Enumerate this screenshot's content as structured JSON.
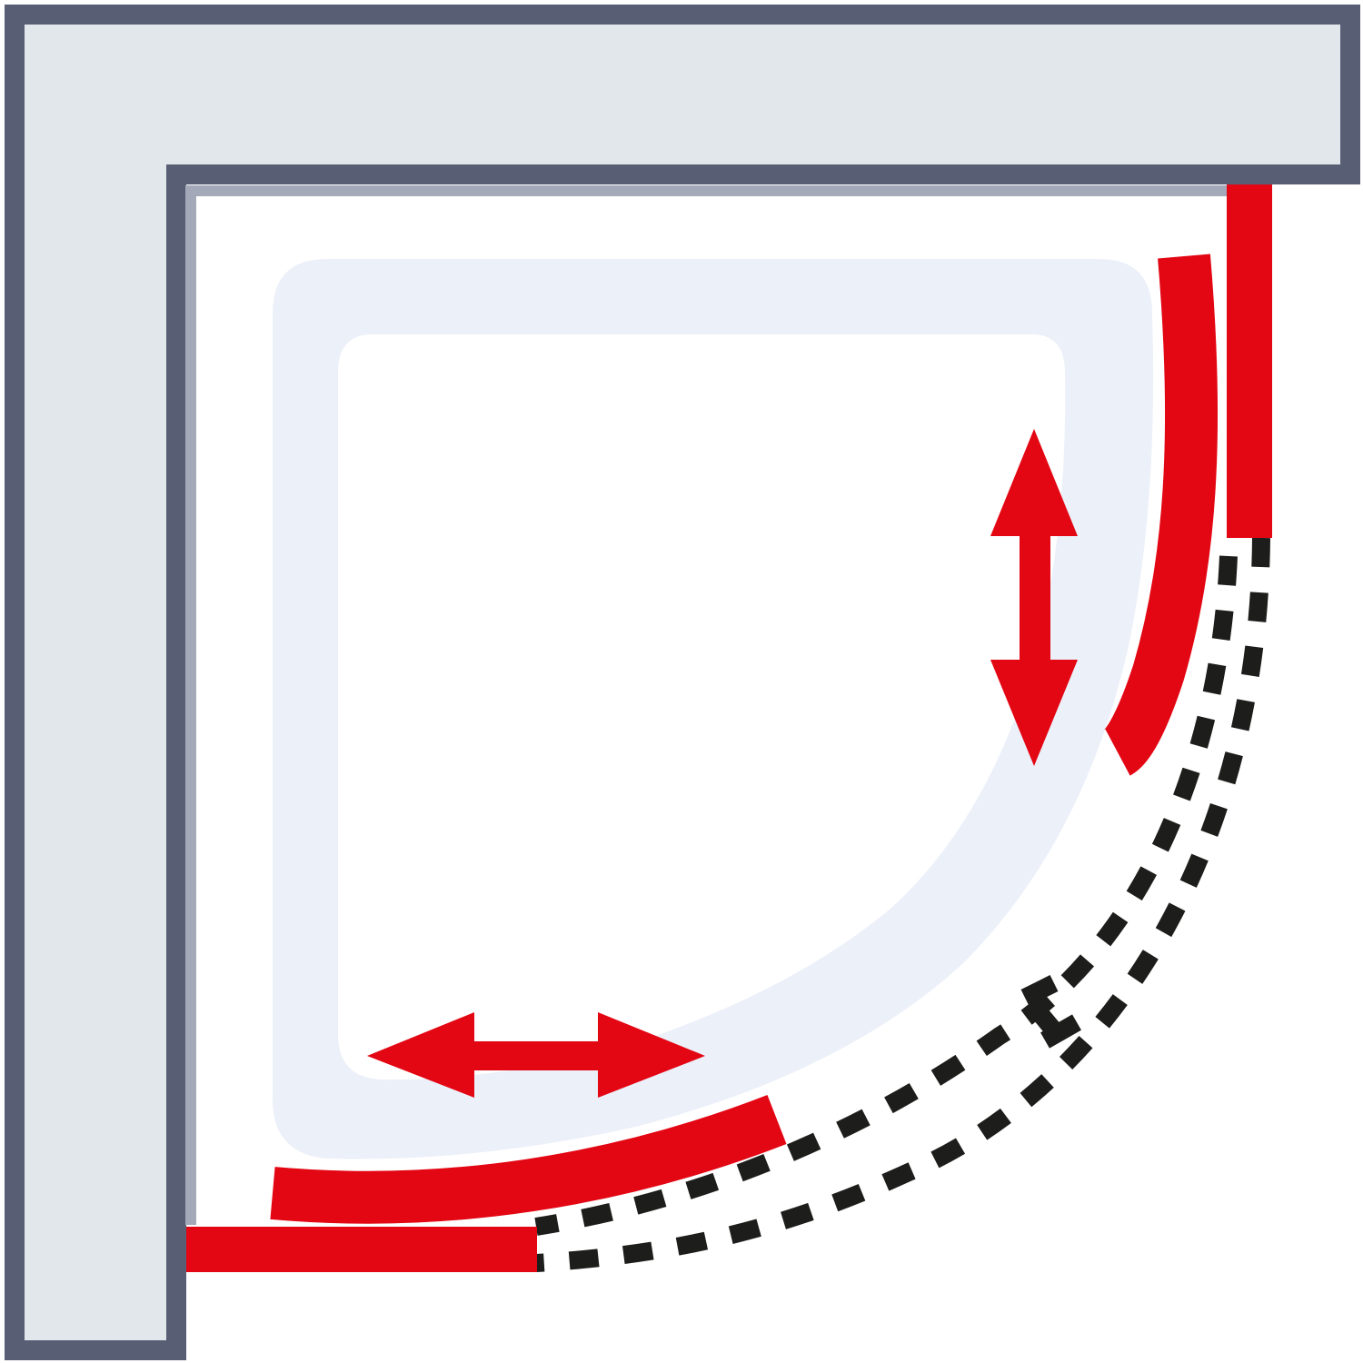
{
  "diagram": {
    "kind": "shower-enclosure-top-view",
    "colors": {
      "wall_fill": "#e2e7ec",
      "wall_outline": "#585f75",
      "wall_edge": "#a4a9ba",
      "tray_fill": "#ecf0f9",
      "tray_inner": "#ffffff",
      "panel": "#e30613",
      "dash": "#1d1d1b",
      "background": "#ffffff"
    },
    "icons": [
      "corner-wall",
      "shower-tray",
      "fixed-panel-right",
      "fixed-panel-bottom",
      "sliding-door-right",
      "sliding-door-bottom",
      "open-door-path-dashed",
      "vertical-double-arrow",
      "horizontal-double-arrow"
    ]
  }
}
